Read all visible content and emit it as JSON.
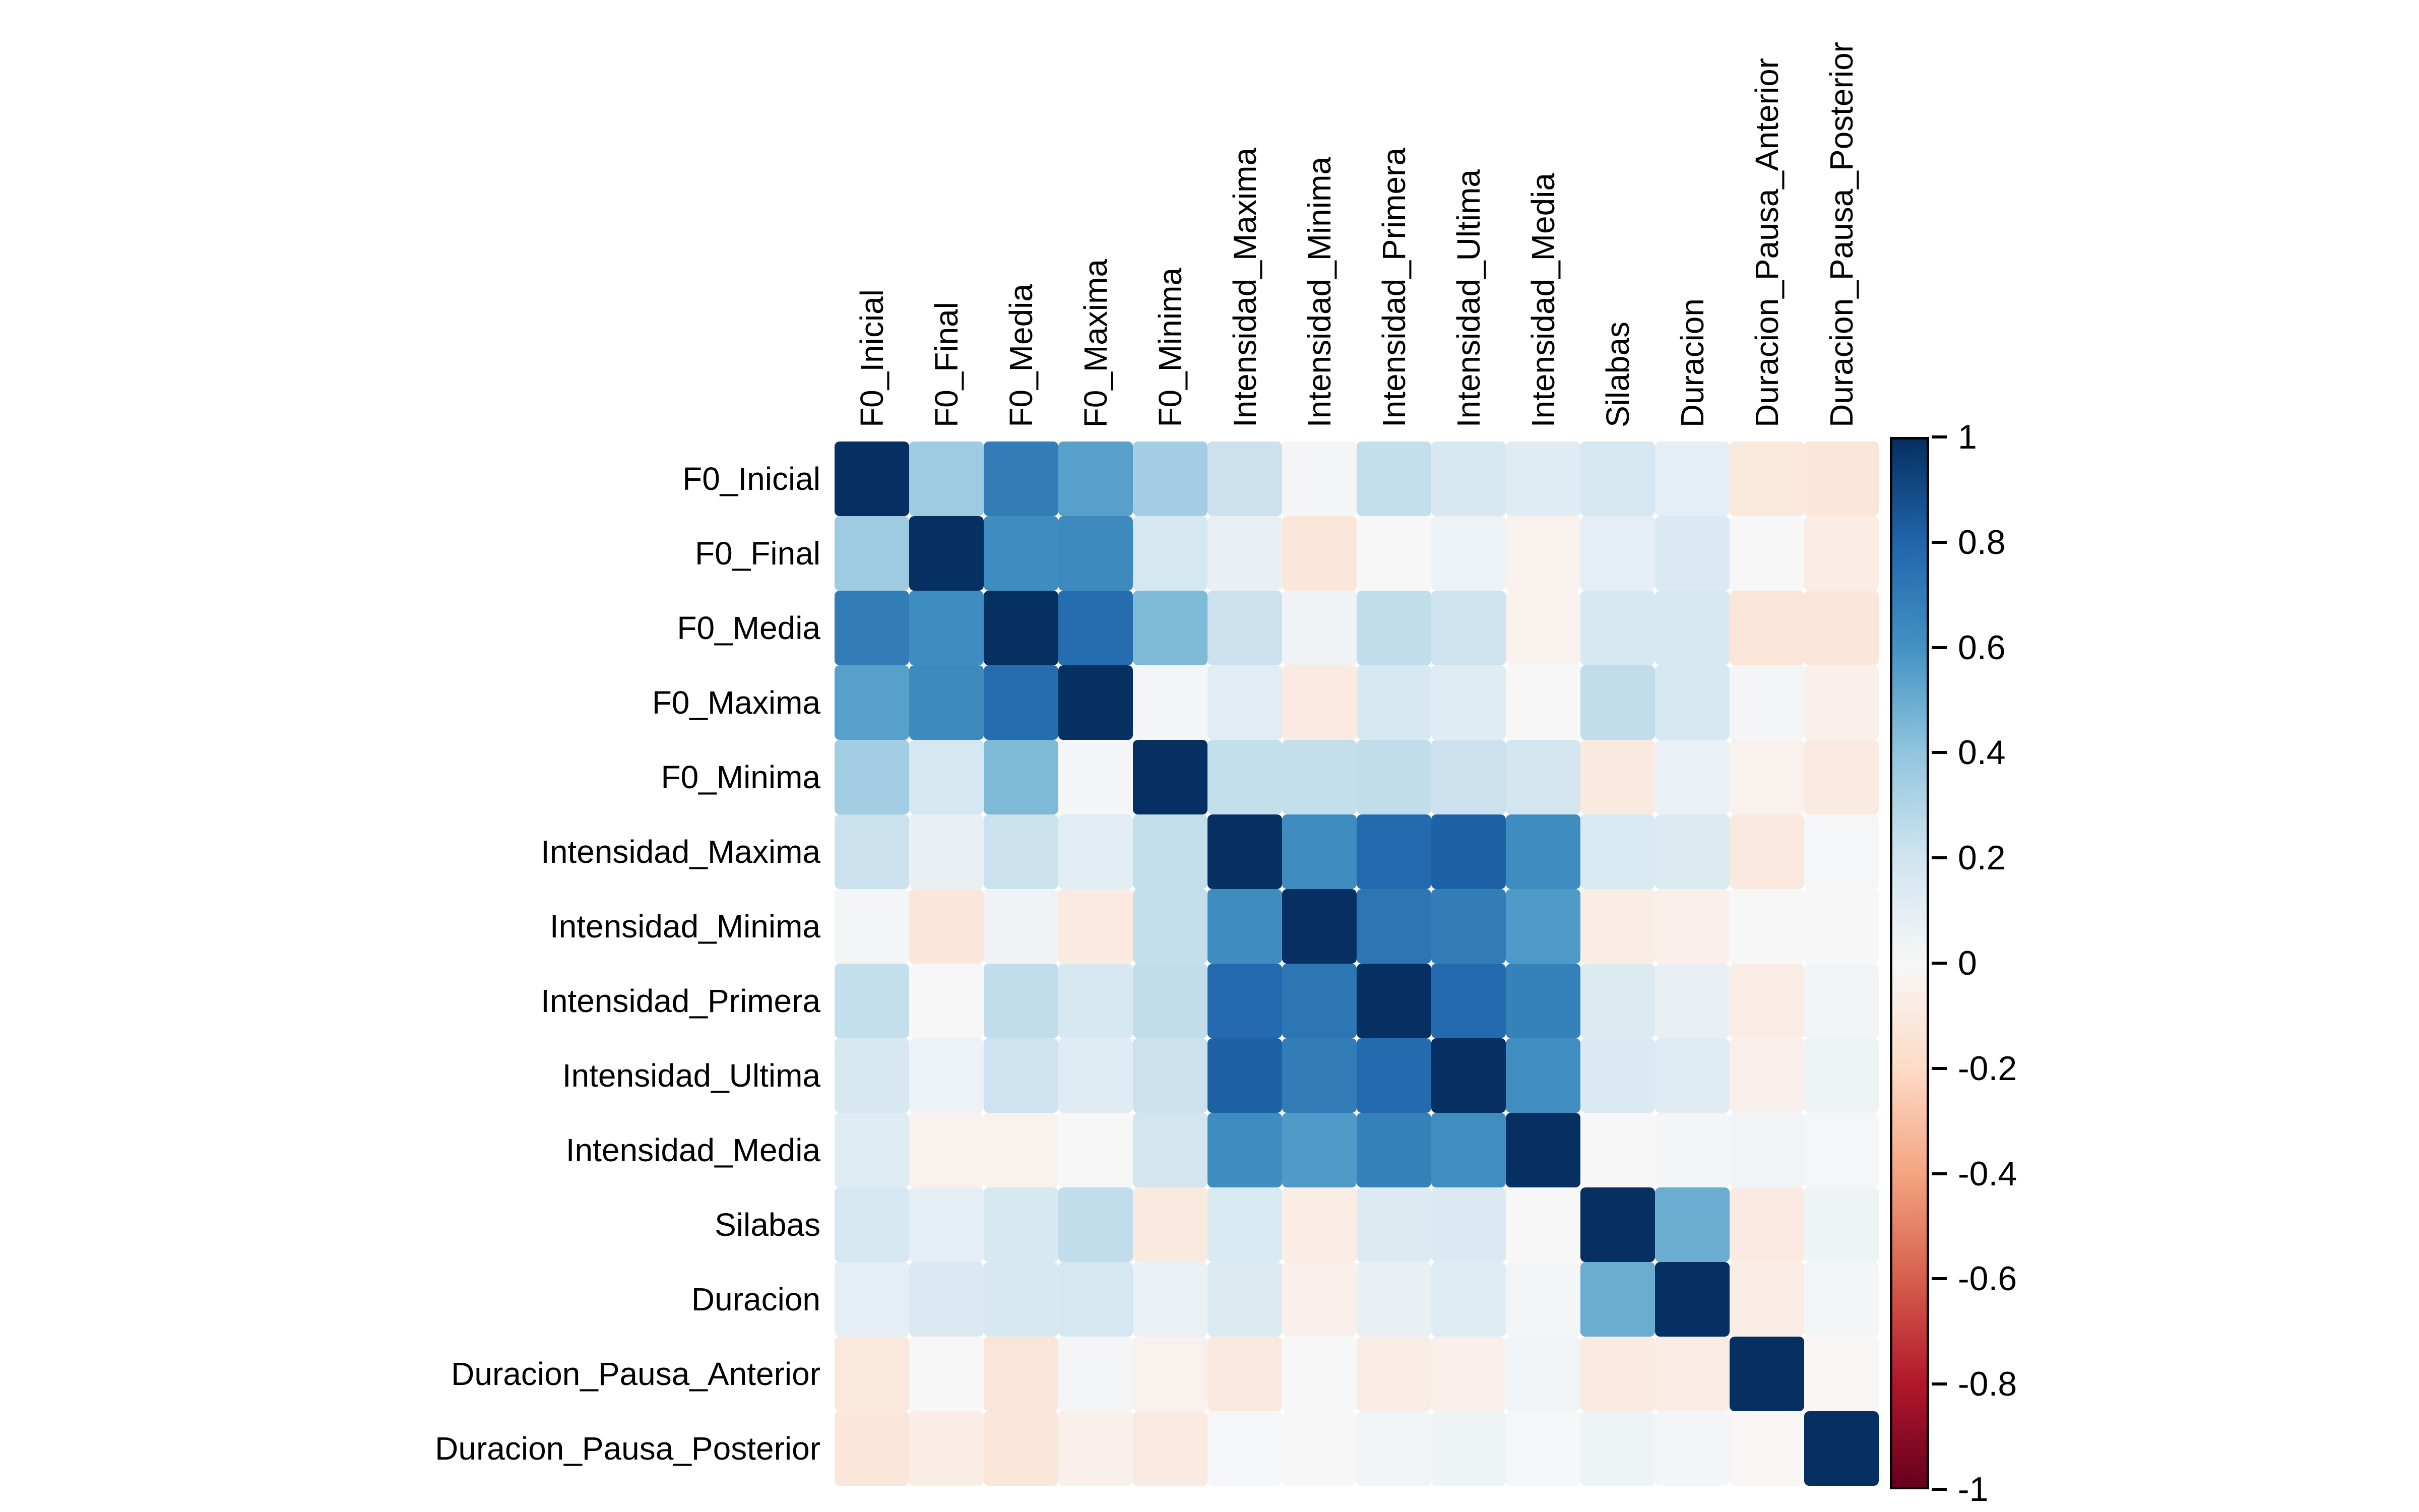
{
  "chart_data": {
    "type": "heatmap",
    "title": "",
    "variables": [
      "F0_Inicial",
      "F0_Final",
      "F0_Media",
      "F0_Maxima",
      "F0_Minima",
      "Intensidad_Maxima",
      "Intensidad_Minima",
      "Intensidad_Primera",
      "Intensidad_Ultima",
      "Intensidad_Media",
      "Silabas",
      "Duracion",
      "Duracion_Pausa_Anterior",
      "Duracion_Pausa_Posterior"
    ],
    "matrix": [
      [
        1.0,
        0.36,
        0.7,
        0.55,
        0.35,
        0.22,
        0.02,
        0.24,
        0.17,
        0.12,
        0.18,
        0.1,
        -0.11,
        -0.12
      ],
      [
        0.36,
        1.0,
        0.63,
        0.64,
        0.18,
        0.08,
        -0.12,
        0.0,
        0.06,
        -0.04,
        0.1,
        0.15,
        0.0,
        -0.07
      ],
      [
        0.7,
        0.63,
        1.0,
        0.77,
        0.45,
        0.22,
        0.04,
        0.25,
        0.21,
        -0.04,
        0.17,
        0.17,
        -0.13,
        -0.12
      ],
      [
        0.55,
        0.64,
        0.77,
        1.0,
        0.02,
        0.11,
        -0.09,
        0.17,
        0.12,
        0.0,
        0.25,
        0.18,
        0.02,
        -0.05
      ],
      [
        0.35,
        0.18,
        0.45,
        0.02,
        1.0,
        0.24,
        0.24,
        0.25,
        0.22,
        0.19,
        -0.1,
        0.07,
        -0.04,
        -0.09
      ],
      [
        0.22,
        0.08,
        0.22,
        0.11,
        0.24,
        1.0,
        0.63,
        0.78,
        0.82,
        0.63,
        0.16,
        0.14,
        -0.1,
        0.01
      ],
      [
        0.02,
        -0.12,
        0.04,
        -0.09,
        0.24,
        0.63,
        1.0,
        0.73,
        0.7,
        0.57,
        -0.07,
        -0.05,
        0.0,
        0.0
      ],
      [
        0.24,
        0.0,
        0.25,
        0.17,
        0.25,
        0.78,
        0.73,
        1.0,
        0.78,
        0.68,
        0.14,
        0.08,
        -0.08,
        0.03
      ],
      [
        0.17,
        0.06,
        0.21,
        0.12,
        0.22,
        0.82,
        0.7,
        0.78,
        1.0,
        0.62,
        0.15,
        0.12,
        -0.05,
        0.05
      ],
      [
        0.12,
        -0.04,
        -0.04,
        0.0,
        0.19,
        0.63,
        0.57,
        0.68,
        0.62,
        1.0,
        0.0,
        0.02,
        0.03,
        0.01
      ],
      [
        0.18,
        0.1,
        0.17,
        0.25,
        -0.1,
        0.16,
        -0.07,
        0.14,
        0.15,
        0.0,
        1.0,
        0.5,
        -0.09,
        0.05
      ],
      [
        0.1,
        0.15,
        0.17,
        0.18,
        0.07,
        0.14,
        -0.05,
        0.08,
        0.12,
        0.02,
        0.5,
        1.0,
        -0.08,
        0.02
      ],
      [
        -0.11,
        0.0,
        -0.13,
        0.02,
        -0.04,
        -0.1,
        0.0,
        -0.08,
        -0.05,
        0.03,
        -0.09,
        -0.08,
        1.0,
        -0.01
      ],
      [
        -0.12,
        -0.07,
        -0.12,
        -0.05,
        -0.09,
        0.01,
        0.0,
        0.03,
        0.05,
        0.01,
        0.05,
        0.02,
        -0.01,
        1.0
      ]
    ],
    "vmin": -1,
    "vmax": 1,
    "colormap_name": "RdBu",
    "colormap_stops": [
      "#67001f",
      "#b2182b",
      "#d6604d",
      "#f4a582",
      "#fddbc7",
      "#f7f7f7",
      "#d1e5f0",
      "#92c5de",
      "#4393c3",
      "#2166ac",
      "#053061"
    ],
    "colorbar": {
      "position": "right",
      "tick_labels": [
        "1",
        "0.8",
        "0.6",
        "0.4",
        "0.2",
        "0",
        "-0.2",
        "-0.4",
        "-0.6",
        "-0.8",
        "-1"
      ]
    },
    "grid": false,
    "legend_position": "right",
    "background_color": "#ffffff",
    "text_color": "#000000"
  }
}
